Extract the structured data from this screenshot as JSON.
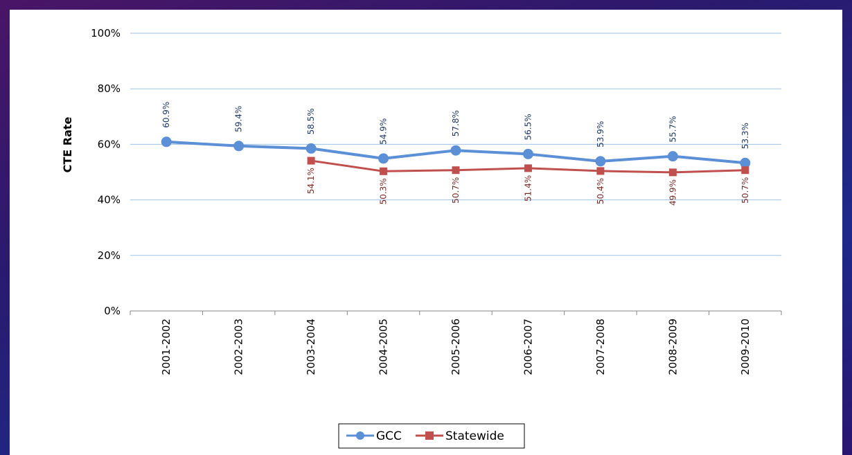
{
  "chart_data": {
    "type": "line",
    "title": "",
    "xlabel": "",
    "ylabel": "CTE Rate",
    "ylim": [
      0,
      100
    ],
    "yticks": [
      "0%",
      "20%",
      "40%",
      "60%",
      "80%",
      "100%"
    ],
    "categories": [
      "2001-2002",
      "2002-2003",
      "2003-2004",
      "2004-2005",
      "2005-2006",
      "2006-2007",
      "2007-2008",
      "2008-2009",
      "2009-2010"
    ],
    "series": [
      {
        "name": "GCC",
        "color": "#5b8fd6",
        "marker": "circle",
        "values": [
          60.9,
          59.4,
          58.5,
          54.9,
          57.8,
          56.5,
          53.9,
          55.7,
          53.3
        ],
        "labels": [
          "60.9%",
          "59.4%",
          "58.5%",
          "54.9%",
          "57.8%",
          "56.5%",
          "53.9%",
          "55.7%",
          "53.3%"
        ],
        "label_color": "#1f3864"
      },
      {
        "name": "Statewide",
        "color": "#c0504d",
        "marker": "square",
        "values": [
          null,
          null,
          54.1,
          50.3,
          50.7,
          51.4,
          50.4,
          49.9,
          50.7
        ],
        "labels": [
          null,
          null,
          "54.1%",
          "50.3%",
          "50.7%",
          "51.4%",
          "50.4%",
          "49.9%",
          "50.7%"
        ],
        "label_color": "#7b2a2a"
      }
    ],
    "grid": true,
    "gridline_color": "#9ec3e6",
    "legend_position": "bottom"
  }
}
